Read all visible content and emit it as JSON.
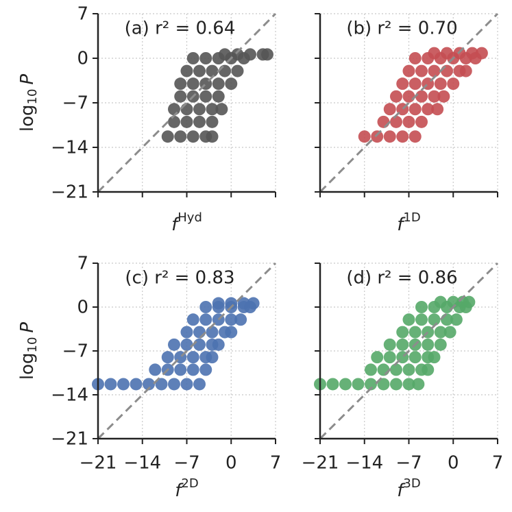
{
  "chart_data": [
    {
      "type": "scatter",
      "title": "(a) r² = 0.64",
      "color": "#555555",
      "xlabel": "f",
      "xlabel_sup": "Hyd",
      "ylabel": "log",
      "ylabel_sub": "10",
      "ylabel_var": "P",
      "xlim": [
        -21,
        7
      ],
      "ylim": [
        -21,
        7
      ],
      "xticks": [
        -21,
        -14,
        -7,
        0,
        7
      ],
      "show_xtick_labels": false,
      "yticks": [
        {
          "value": -21,
          "label": "−21"
        },
        {
          "value": -14,
          "label": "−14"
        },
        {
          "value": -7,
          "label": "−7"
        },
        0,
        7
      ],
      "grid": true,
      "x": [
        -10,
        -8,
        -6,
        -4,
        -3,
        -9,
        -7,
        -5,
        -3,
        -9,
        -7,
        -5,
        -3,
        -1.5,
        -8,
        -6,
        -4,
        -2,
        -8,
        -6,
        -4,
        -2,
        0,
        -7,
        -5,
        -3,
        -1,
        1,
        -6,
        -4,
        -2,
        0,
        2,
        -1,
        1,
        3,
        5,
        5.7
      ],
      "y": [
        -12.3,
        -12.3,
        -12.3,
        -12.3,
        -12.3,
        -10,
        -10,
        -10,
        -10,
        -8,
        -8,
        -8,
        -8,
        -8,
        -6,
        -6,
        -6,
        -6,
        -4,
        -4,
        -4,
        -4,
        -4,
        -2,
        -2,
        -2,
        -2,
        -2,
        0,
        0,
        0,
        0,
        0,
        0.6,
        0.6,
        0.6,
        0.6,
        0.6
      ]
    },
    {
      "type": "scatter",
      "title": "(b) r² = 0.70",
      "color": "#c44e52",
      "xlabel": "f",
      "xlabel_sup": "1D",
      "xlim": [
        -21,
        7
      ],
      "ylim": [
        -21,
        7
      ],
      "xticks": [
        -21,
        -14,
        -7,
        0,
        7
      ],
      "show_xtick_labels": false,
      "yticks": [
        -21,
        -14,
        -7,
        0,
        7
      ],
      "show_ytick_labels": false,
      "grid": true,
      "x": [
        -14,
        -12,
        -10,
        -8,
        -6,
        -11,
        -9,
        -7,
        -5,
        -10,
        -8,
        -6,
        -4,
        -2.5,
        -9,
        -7,
        -5,
        -3,
        -1.5,
        -8,
        -6,
        -4,
        -2,
        0,
        -7,
        -5,
        -3,
        -1,
        1,
        2,
        -6,
        -4,
        -2,
        0,
        2,
        3.5,
        -3,
        -1,
        1,
        3,
        4.5
      ],
      "y": [
        -12.3,
        -12.3,
        -12.3,
        -12.3,
        -12.3,
        -10,
        -10,
        -10,
        -10,
        -8,
        -8,
        -8,
        -8,
        -8,
        -6,
        -6,
        -6,
        -6,
        -6,
        -4,
        -4,
        -4,
        -4,
        -4,
        -2,
        -2,
        -2,
        -2,
        -2,
        -2,
        0,
        0,
        0,
        0,
        0,
        0,
        0.8,
        0.8,
        0.8,
        0.8,
        0.8
      ]
    },
    {
      "type": "scatter",
      "title": "(c) r² = 0.83",
      "color": "#4c72b0",
      "xlabel": "f",
      "xlabel_sup": "2D",
      "ylabel": "log",
      "ylabel_sub": "10",
      "ylabel_var": "P",
      "xlim": [
        -21,
        7
      ],
      "ylim": [
        -21,
        7
      ],
      "xticks": [
        {
          "value": -21,
          "label": "−21"
        },
        {
          "value": -14,
          "label": "−14"
        },
        {
          "value": -7,
          "label": "−7"
        },
        0,
        7
      ],
      "yticks": [
        {
          "value": -21,
          "label": "−21"
        },
        {
          "value": -14,
          "label": "−14"
        },
        {
          "value": -7,
          "label": "−7"
        },
        0,
        7
      ],
      "grid": true,
      "x": [
        -21,
        -19,
        -17,
        -15,
        -13,
        -11,
        -9,
        -7,
        -5,
        -12,
        -10,
        -8,
        -6,
        -4,
        -10,
        -8,
        -6,
        -4,
        -3,
        -9,
        -7,
        -5,
        -3,
        -2,
        -7,
        -5,
        -3,
        -1,
        0,
        -6,
        -4,
        -2,
        0,
        1.5,
        -4,
        -2,
        0,
        2,
        3,
        -2,
        0,
        2,
        3.5
      ],
      "y": [
        -12.3,
        -12.3,
        -12.3,
        -12.3,
        -12.3,
        -12.3,
        -12.3,
        -12.3,
        -12.3,
        -10,
        -10,
        -10,
        -10,
        -10,
        -8,
        -8,
        -8,
        -8,
        -8,
        -6,
        -6,
        -6,
        -6,
        -6,
        -4,
        -4,
        -4,
        -4,
        -4,
        -2,
        -2,
        -2,
        -2,
        -2,
        0,
        0,
        0,
        0,
        0,
        0.6,
        0.6,
        0.6,
        0.6
      ]
    },
    {
      "type": "scatter",
      "title": "(d) r² = 0.86",
      "color": "#55a868",
      "xlabel": "f",
      "xlabel_sup": "3D",
      "xlim": [
        -21,
        7
      ],
      "ylim": [
        -21,
        7
      ],
      "xticks": [
        {
          "value": -21,
          "label": "−21"
        },
        {
          "value": -14,
          "label": "−14"
        },
        {
          "value": -7,
          "label": "−7"
        },
        0,
        7
      ],
      "yticks": [
        -21,
        -14,
        -7,
        0,
        7
      ],
      "show_ytick_labels": false,
      "grid": true,
      "x": [
        -21,
        -19,
        -17,
        -15,
        -13,
        -11,
        -9,
        -7,
        -5.5,
        -13,
        -11,
        -9,
        -7,
        -5,
        -4,
        -12,
        -10,
        -8,
        -6,
        -4,
        -3,
        -10,
        -8,
        -6,
        -4,
        -2,
        -8,
        -6,
        -4,
        -2,
        -0.5,
        -7,
        -5,
        -3,
        -1,
        0.5,
        -5,
        -3,
        -1,
        1,
        2,
        -2,
        0,
        1.5,
        2.5
      ],
      "y": [
        -12.3,
        -12.3,
        -12.3,
        -12.3,
        -12.3,
        -12.3,
        -12.3,
        -12.3,
        -12.3,
        -10,
        -10,
        -10,
        -10,
        -10,
        -10,
        -8,
        -8,
        -8,
        -8,
        -8,
        -8,
        -6,
        -6,
        -6,
        -6,
        -6,
        -4,
        -4,
        -4,
        -4,
        -4,
        -2,
        -2,
        -2,
        -2,
        -2,
        0,
        0,
        0,
        0,
        0,
        0.8,
        0.8,
        0.8,
        0.8
      ]
    }
  ]
}
